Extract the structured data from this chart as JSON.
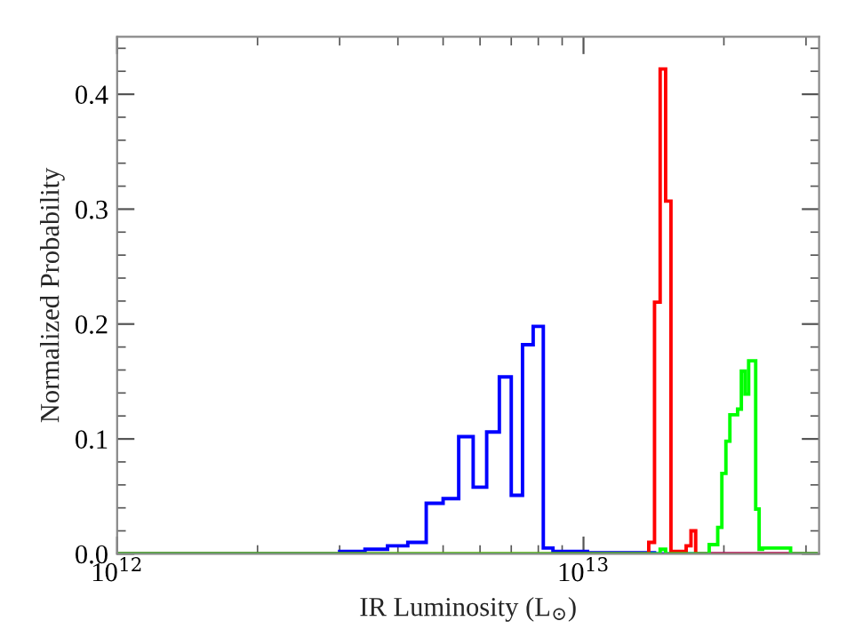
{
  "chart_data": {
    "type": "histogram",
    "xlabel": "IR Luminosity (L$_{⊙}$)",
    "ylabel": "Normalized Probability",
    "bins": [
      1000000000000.0,
      1400000000000.0,
      1800000000000.0,
      2200000000000.0,
      2600000000000.0,
      3000000000000.0,
      3400000000000.0,
      3800000000000.0,
      4200000000000.0,
      4600000000000.0,
      5000000000000.0,
      5400000000000.0,
      5800000000000.0,
      6200000000000.0,
      6600000000000.0,
      7000000000000.0,
      7400000000000.0,
      7800000000000.0,
      8200000000000.0,
      8600000000000.0,
      9000000000000.0,
      9400000000000.0,
      9800000000000.0,
      10200000000000.0,
      10600000000000.0,
      11000000000000.0,
      11400000000000.0,
      11800000000000.0,
      12200000000000.0,
      12600000000000.0,
      13000000000000.0,
      13400000000000.0,
      13800000000000.0,
      14200000000000.0,
      14600000000000.0,
      15000000000000.0,
      15400000000000.0,
      15800000000000.0,
      16200000000000.0,
      16600000000000.0,
      17000000000000.0,
      17400000000000.0,
      17800000000000.0,
      18200000000000.0,
      18600000000000.0,
      19000000000000.0,
      19400000000000.0,
      19800000000000.0,
      20200000000000.0,
      20600000000000.0,
      21000000000000.0,
      21400000000000.0,
      21800000000000.0,
      22200000000000.0,
      22600000000000.0,
      23000000000000.0,
      23400000000000.0,
      23800000000000.0,
      24200000000000.0,
      24600000000000.0,
      25000000000000.0,
      25400000000000.0,
      25800000000000.0,
      26200000000000.0,
      26600000000000.0,
      27000000000000.0,
      27400000000000.0,
      27800000000000.0,
      28200000000000.0,
      28600000000000.0,
      29000000000000.0,
      29400000000000.0,
      29800000000000.0,
      30200000000000.0,
      30600000000000.0,
      31000000000000.0,
      31400000000000.0,
      31800000000000.0
    ],
    "series": [
      {
        "color": "#0000ff",
        "values": [
          0,
          0,
          0,
          0,
          0,
          0.002,
          0.004,
          0.007,
          0.01,
          0.044,
          0.048,
          0.102,
          0.058,
          0.106,
          0.154,
          0.051,
          0.182,
          0.198,
          0.005,
          0.002,
          0.002,
          0.002,
          0.002,
          0.001,
          0.001,
          0.001,
          0.001,
          0.001,
          0.001,
          0.001,
          0.001,
          0.001,
          0.001,
          0,
          0,
          0,
          0,
          0,
          0,
          0,
          0,
          0,
          0,
          0,
          0,
          0,
          0,
          0,
          0,
          0,
          0,
          0,
          0,
          0,
          0,
          0,
          0,
          0,
          0,
          0,
          0,
          0,
          0,
          0,
          0,
          0,
          0,
          0,
          0,
          0,
          0,
          0,
          0,
          0,
          0,
          0,
          0
        ]
      },
      {
        "color": "#ff0000",
        "values": [
          0,
          0,
          0,
          0,
          0,
          0,
          0,
          0,
          0,
          0,
          0,
          0,
          0,
          0,
          0,
          0,
          0,
          0,
          0,
          0,
          0,
          0,
          0,
          0,
          0,
          0,
          0,
          0,
          0,
          0,
          0,
          0,
          0.01,
          0.219,
          0.422,
          0.307,
          0.002,
          0.002,
          0.002,
          0.007,
          0.02,
          0,
          0,
          0,
          0,
          0,
          0,
          0,
          0,
          0,
          0,
          0,
          0,
          0,
          0,
          0,
          0,
          0,
          0,
          0,
          0,
          0,
          0,
          0,
          0,
          0,
          0,
          0,
          0,
          0,
          0,
          0,
          0,
          0,
          0,
          0,
          0
        ]
      },
      {
        "color": "#00ff00",
        "values": [
          0,
          0,
          0,
          0,
          0,
          0,
          0,
          0,
          0,
          0,
          0,
          0,
          0,
          0,
          0,
          0,
          0,
          0,
          0,
          0,
          0,
          0,
          0,
          0,
          0,
          0,
          0,
          0,
          0,
          0,
          0,
          0,
          0,
          0,
          0.004,
          0,
          0,
          0,
          0,
          0,
          0,
          0,
          0,
          0,
          0.008,
          0.008,
          0.023,
          0.07,
          0.098,
          0.121,
          0.121,
          0.126,
          0.159,
          0.139,
          0.168,
          0.168,
          0.039,
          0.004,
          0.005,
          0.005,
          0.005,
          0.005,
          0.005,
          0.005,
          0.005,
          0.005,
          0.005,
          0,
          0,
          0,
          0,
          0,
          0,
          0,
          0,
          0,
          0
        ]
      }
    ],
    "log": "x",
    "xlim": [
      1000000000000.0,
      32000000000000.0
    ],
    "xticks": [
      {
        "value": 1000000000000.0,
        "label": "10$^{12}$"
      },
      {
        "value": 10000000000000.0,
        "label": "10$^{13}$"
      }
    ],
    "ylim": [
      0,
      0.45
    ],
    "yticks": [
      {
        "value": 0,
        "label": "0.0"
      },
      {
        "value": 0.1,
        "label": "0.1"
      },
      {
        "value": 0.2,
        "label": "0.2"
      },
      {
        "value": 0.3,
        "label": "0.3"
      },
      {
        "value": 0.4,
        "label": "0.4"
      }
    ],
    "grid": false
  }
}
